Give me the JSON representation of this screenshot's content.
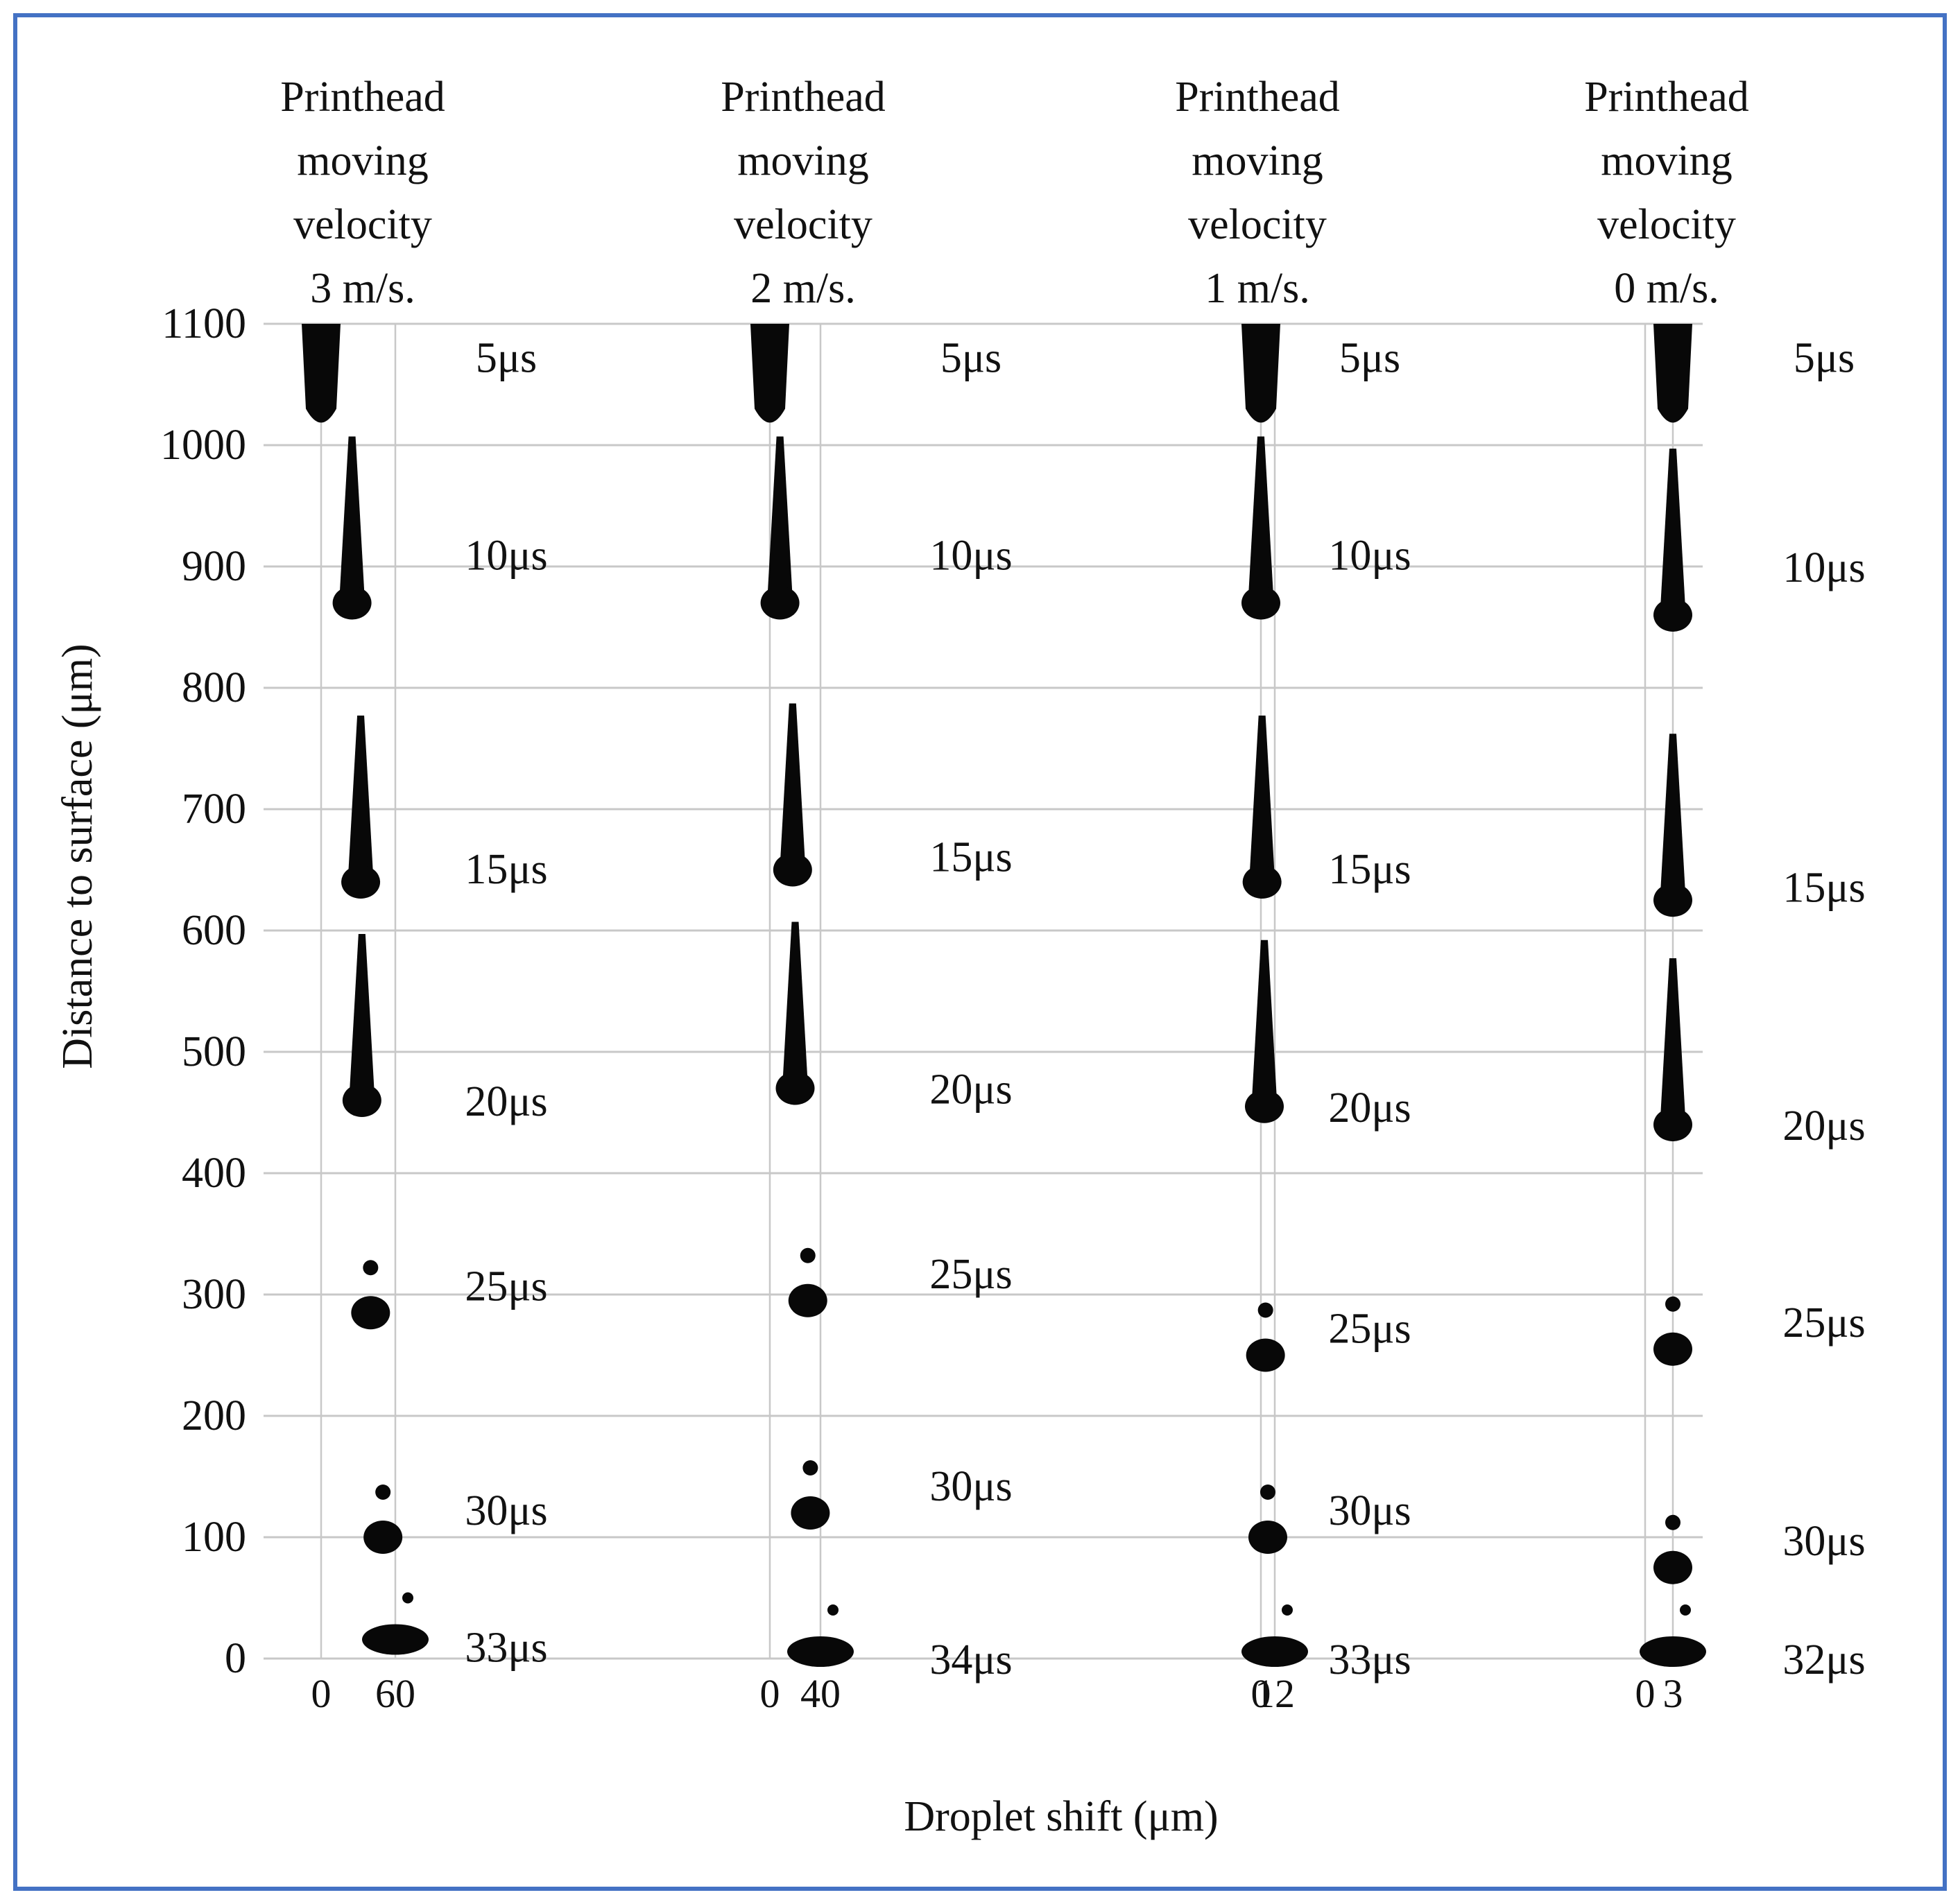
{
  "chart_data": {
    "type": "scatter",
    "title": "",
    "xlabel": "Droplet shift (μm)",
    "ylabel": "Distance to surface (μm)",
    "ylim": [
      0,
      1100
    ],
    "yticks": [
      "0",
      "100",
      "200",
      "300",
      "400",
      "500",
      "600",
      "700",
      "800",
      "900",
      "1000",
      "1100"
    ],
    "grid": true,
    "series": [
      {
        "name": "Printhead moving velocity 3 m/s.",
        "title_lines": [
          "Printhead",
          "moving",
          "velocity",
          "3 m/s."
        ],
        "xtick_labels": [
          "0",
          "60"
        ],
        "max_shift": 60,
        "label_color": "#ff0000",
        "time_labels": [
          "5μs",
          "10μs",
          "15μs",
          "20μs",
          "25μs",
          "30μs",
          "33μs"
        ],
        "points": [
          {
            "t": 5,
            "distance": 1050,
            "shift": 0
          },
          {
            "t": 10,
            "distance": 870,
            "shift": 25
          },
          {
            "t": 15,
            "distance": 640,
            "shift": 32
          },
          {
            "t": 20,
            "distance": 460,
            "shift": 33
          },
          {
            "t": 25,
            "distance": 285,
            "shift": 40
          },
          {
            "t": 30,
            "distance": 100,
            "shift": 50
          },
          {
            "t": 33,
            "distance": 10,
            "shift": 60
          }
        ]
      },
      {
        "name": "Printhead moving velocity 2 m/s.",
        "title_lines": [
          "Printhead",
          "moving",
          "velocity",
          "2 m/s."
        ],
        "xtick_labels": [
          "0",
          "40"
        ],
        "max_shift": 40,
        "label_color": "#1e8c1e",
        "time_labels": [
          "5μs",
          "10μs",
          "15μs",
          "20μs",
          "25μs",
          "30μs",
          "34μs"
        ],
        "points": [
          {
            "t": 5,
            "distance": 1050,
            "shift": 0
          },
          {
            "t": 10,
            "distance": 870,
            "shift": 8
          },
          {
            "t": 15,
            "distance": 650,
            "shift": 18
          },
          {
            "t": 20,
            "distance": 470,
            "shift": 20
          },
          {
            "t": 25,
            "distance": 295,
            "shift": 30
          },
          {
            "t": 30,
            "distance": 120,
            "shift": 32
          },
          {
            "t": 34,
            "distance": 0,
            "shift": 40
          }
        ]
      },
      {
        "name": "Printhead moving velocity 1 m/s.",
        "title_lines": [
          "Printhead",
          "moving",
          "velocity",
          "1 m/s."
        ],
        "xtick_labels": [
          "0",
          "12"
        ],
        "max_shift": 12,
        "label_color": "#1a1aff",
        "time_labels": [
          "5μs",
          "10μs",
          "15μs",
          "20μs",
          "25μs",
          "30μs",
          "33μs"
        ],
        "points": [
          {
            "t": 5,
            "distance": 1050,
            "shift": 0
          },
          {
            "t": 10,
            "distance": 870,
            "shift": 0
          },
          {
            "t": 15,
            "distance": 640,
            "shift": 1
          },
          {
            "t": 20,
            "distance": 455,
            "shift": 3
          },
          {
            "t": 25,
            "distance": 250,
            "shift": 4
          },
          {
            "t": 30,
            "distance": 100,
            "shift": 6
          },
          {
            "t": 33,
            "distance": 0,
            "shift": 12
          }
        ]
      },
      {
        "name": "Printhead moving velocity 0 m/s.",
        "title_lines": [
          "Printhead",
          "moving",
          "velocity",
          "0 m/s."
        ],
        "xtick_labels": [
          "0",
          "3"
        ],
        "max_shift": 3,
        "label_color": "#111111",
        "time_labels": [
          "5μs",
          "10μs",
          "15μs",
          "20μs",
          "25μs",
          "30μs",
          "32μs"
        ],
        "points": [
          {
            "t": 5,
            "distance": 1050,
            "shift": 3
          },
          {
            "t": 10,
            "distance": 860,
            "shift": 3
          },
          {
            "t": 15,
            "distance": 625,
            "shift": 3
          },
          {
            "t": 20,
            "distance": 440,
            "shift": 3
          },
          {
            "t": 25,
            "distance": 255,
            "shift": 3
          },
          {
            "t": 30,
            "distance": 75,
            "shift": 3
          },
          {
            "t": 32,
            "distance": 0,
            "shift": 3
          }
        ]
      }
    ]
  }
}
